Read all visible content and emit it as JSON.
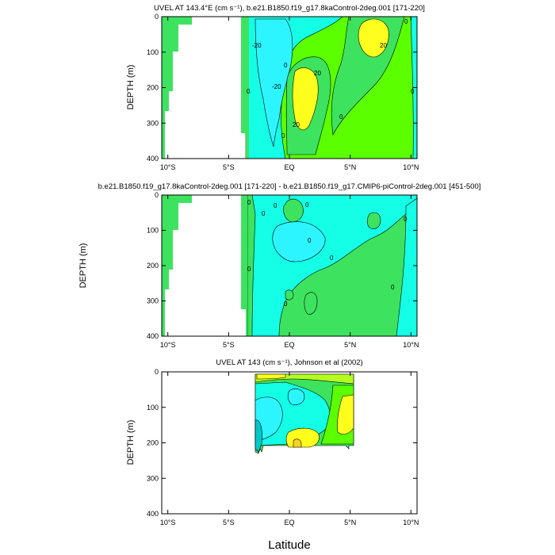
{
  "chart_data": [
    {
      "type": "contour",
      "title": "UVEL AT 143.4°E (cm s⁻¹), b.e21.B1850.f19_g17.8kaControl-2deg.001 [171-220]",
      "ylabel": "DEPTH (m)",
      "xlabel": "",
      "x_ticks": [
        "10°S",
        "5°S",
        "EQ",
        "5°N",
        "10°N"
      ],
      "x_tick_values": [
        -10,
        -5,
        0,
        5,
        10
      ],
      "y_ticks": [
        "0",
        "100",
        "200",
        "300",
        "400"
      ],
      "y_tick_values": [
        0,
        100,
        200,
        300,
        400
      ],
      "xlim": [
        -10.5,
        10.5
      ],
      "ylim": [
        400,
        0
      ],
      "contour_labels": [
        "-20",
        "-20",
        "20",
        "20",
        "20",
        "0",
        "0",
        "0",
        "0",
        "0",
        "0",
        "0"
      ]
    },
    {
      "type": "contour",
      "title": "b.e21.B1850.f19_g17.8kaControl-2deg.001 [171-220] - b.e21.B1850.f19_g17.CMIP6-piControl-2deg.001 [451-500]",
      "ylabel": "DEPTH (m)",
      "xlabel": "",
      "x_ticks": [
        "10°S",
        "5°S",
        "EQ",
        "5°N",
        "10°N"
      ],
      "x_tick_values": [
        -10,
        -5,
        0,
        5,
        10
      ],
      "y_ticks": [
        "0",
        "100",
        "200",
        "300",
        "400"
      ],
      "y_tick_values": [
        0,
        100,
        200,
        300,
        400
      ],
      "xlim": [
        -10.5,
        10.5
      ],
      "ylim": [
        400,
        0
      ],
      "contour_labels": [
        "0",
        "0",
        "0",
        "0",
        "0",
        "0",
        "0",
        "0",
        "0",
        "0"
      ]
    },
    {
      "type": "contour",
      "title": "UVEL AT 143 (cm s⁻¹), Johnson et al (2002)",
      "ylabel": "DEPTH (m)",
      "xlabel": "Latitude",
      "x_ticks": [
        "10°S",
        "5°S",
        "EQ",
        "5°N",
        "10°N"
      ],
      "x_tick_values": [
        -10,
        -5,
        0,
        5,
        10
      ],
      "y_ticks": [
        "0",
        "100",
        "200",
        "300",
        "400"
      ],
      "y_tick_values": [
        0,
        100,
        200,
        300,
        400
      ],
      "xlim": [
        -10.5,
        10.5
      ],
      "ylim": [
        400,
        0
      ],
      "data_extent": {
        "lat": [
          -3,
          5
        ],
        "depth": [
          0,
          225
        ]
      }
    }
  ],
  "colors": {
    "green": "#3de35f",
    "light_green": "#5cff00",
    "cyan": "#14ffe6",
    "sky": "#2df5ff",
    "yellow": "#ffff1e",
    "gold": "#ffd21e",
    "chartreuse": "#b4ff1e",
    "teal": "#00c8c8",
    "white": "#ffffff",
    "line": "#000000"
  }
}
